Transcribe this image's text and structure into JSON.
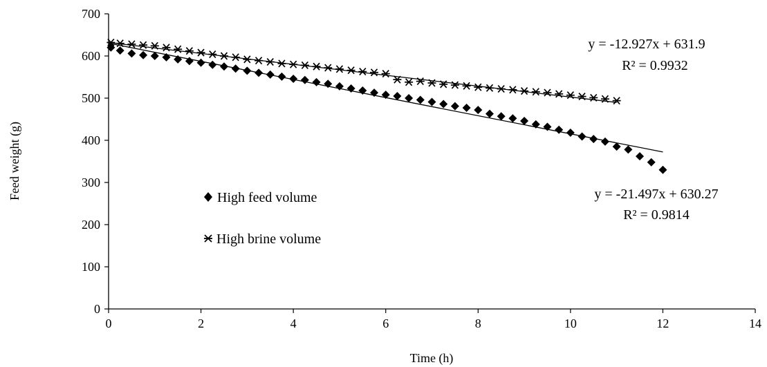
{
  "chart_data": {
    "type": "scatter",
    "xlabel": "Time (h)",
    "ylabel": "Feed weight (g)",
    "xlim": [
      0,
      14
    ],
    "ylim": [
      0,
      700
    ],
    "xticks": [
      0,
      2,
      4,
      6,
      8,
      10,
      12,
      14
    ],
    "yticks": [
      0,
      100,
      200,
      300,
      400,
      500,
      600,
      700
    ],
    "grid": false,
    "legend_position": "left-middle",
    "series": [
      {
        "name": "High feed volume",
        "marker": "diamond",
        "color": "#000000",
        "x": [
          0.05,
          0.25,
          0.5,
          0.75,
          1.0,
          1.25,
          1.5,
          1.75,
          2.0,
          2.25,
          2.5,
          2.75,
          3.0,
          3.25,
          3.5,
          3.75,
          4.0,
          4.25,
          4.5,
          4.75,
          5.0,
          5.25,
          5.5,
          5.75,
          6.0,
          6.25,
          6.5,
          6.75,
          7.0,
          7.25,
          7.5,
          7.75,
          8.0,
          8.25,
          8.5,
          8.75,
          9.0,
          9.25,
          9.5,
          9.75,
          10.0,
          10.25,
          10.5,
          10.75,
          11.0,
          11.25,
          11.5,
          11.75,
          12.0
        ],
        "y": [
          620,
          613,
          606,
          602,
          600,
          597,
          592,
          588,
          584,
          579,
          575,
          570,
          565,
          560,
          556,
          551,
          546,
          543,
          538,
          534,
          528,
          523,
          518,
          513,
          508,
          505,
          500,
          496,
          491,
          486,
          481,
          477,
          472,
          463,
          457,
          452,
          446,
          438,
          432,
          425,
          418,
          409,
          403,
          397,
          385,
          378,
          362,
          348,
          330
        ]
      },
      {
        "name": "High brine volume",
        "marker": "asterisk",
        "color": "#000000",
        "x": [
          0.05,
          0.25,
          0.5,
          0.75,
          1.0,
          1.25,
          1.5,
          1.75,
          2.0,
          2.25,
          2.5,
          2.75,
          3.0,
          3.25,
          3.5,
          3.75,
          4.0,
          4.25,
          4.5,
          4.75,
          5.0,
          5.25,
          5.5,
          5.75,
          6.0,
          6.25,
          6.5,
          6.75,
          7.0,
          7.25,
          7.5,
          7.75,
          8.0,
          8.25,
          8.5,
          8.75,
          9.0,
          9.25,
          9.5,
          9.75,
          10.0,
          10.25,
          10.5,
          10.75,
          11.0
        ],
        "y": [
          632,
          630,
          628,
          626,
          624,
          620,
          616,
          612,
          608,
          604,
          600,
          597,
          592,
          589,
          586,
          582,
          580,
          578,
          575,
          572,
          569,
          566,
          563,
          561,
          558,
          544,
          538,
          540,
          536,
          533,
          531,
          529,
          526,
          524,
          522,
          520,
          517,
          515,
          513,
          510,
          507,
          504,
          501,
          498,
          494
        ]
      }
    ],
    "trendlines": [
      {
        "series": "High brine volume",
        "slope": -12.927,
        "intercept": 631.9,
        "x_range": [
          0,
          11
        ],
        "equation": "y = -12.927x + 631.9",
        "r2": "R² = 0.9932"
      },
      {
        "series": "High feed volume",
        "slope": -21.497,
        "intercept": 630.27,
        "x_range": [
          0,
          12
        ],
        "equation": "y = -21.497x + 630.27",
        "r2": "R² = 0.9814"
      }
    ]
  }
}
